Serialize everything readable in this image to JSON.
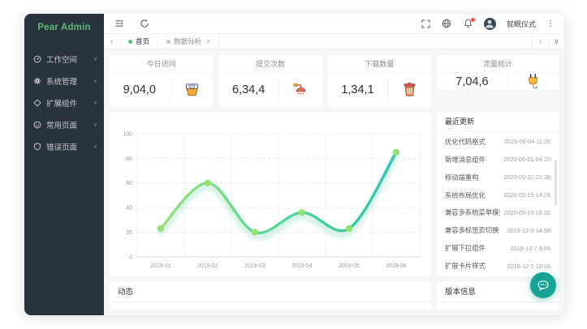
{
  "sidebar": {
    "logo": "Pear Admin",
    "items": [
      {
        "label": "工作空间",
        "icon": "console-icon"
      },
      {
        "label": "系统管理",
        "icon": "settings-icon"
      },
      {
        "label": "扩展组件",
        "icon": "component-icon"
      },
      {
        "label": "常用页面",
        "icon": "pages-icon"
      },
      {
        "label": "错误页面",
        "icon": "error-shield-icon"
      }
    ]
  },
  "header": {
    "username": "就眠仪式"
  },
  "tabbar": {
    "tabs": [
      {
        "label": "首页",
        "active": true
      },
      {
        "label": "数据分析",
        "active": false,
        "closable": true
      }
    ]
  },
  "glyphs": {
    "close": "×",
    "more": "⋮",
    "chevron_left": "‹",
    "chevron_right": "›",
    "chevron_down": "∨"
  },
  "stats": {
    "cards": [
      {
        "title": "今日访问",
        "value": "9,04,0",
        "icon": "paint-bucket-icon"
      },
      {
        "title": "提交次数",
        "value": "6,34,4",
        "icon": "shower-icon"
      },
      {
        "title": "下载数量",
        "value": "1,34,1",
        "icon": "trash-icon"
      },
      {
        "title": "流量统计",
        "value": "7,04,6",
        "icon": "plug-icon"
      }
    ]
  },
  "chart_data": {
    "type": "line",
    "title": "",
    "xlabel": "",
    "ylabel": "",
    "x": [
      "2019-01",
      "2019-02",
      "2019-03",
      "2019-04",
      "2019-05",
      "2019-06"
    ],
    "values": [
      23,
      60,
      20,
      36,
      23,
      85
    ],
    "ylim": [
      0,
      100
    ],
    "yticks": [
      0,
      20,
      40,
      60,
      80,
      100
    ],
    "grid": "horizontal-dashed",
    "legend": "none",
    "smooth": true,
    "line_gradient": [
      "#9de07d",
      "#52d694",
      "#2fc5b2"
    ],
    "point_color": "#97e075",
    "glow_color": "#a8e6cf"
  },
  "updates": {
    "title": "最近更新",
    "items": [
      {
        "name": "优化代码格式",
        "time": "2020-06-04 11:26"
      },
      {
        "name": "新增消息组件",
        "time": "2020-06-01 04:23"
      },
      {
        "name": "移动端重构",
        "time": "2020-05-22 21:38"
      },
      {
        "name": "系统布局优化",
        "time": "2020-05-15 14:26"
      },
      {
        "name": "兼容多系统菜单模式",
        "time": "2020-05-13 16:32"
      },
      {
        "name": "兼容多标签页切换",
        "time": "2019-12-9 14:58"
      },
      {
        "name": "扩展下拉组件",
        "time": "2019-12-7 9:06"
      },
      {
        "name": "扩展卡片样式",
        "time": "2019-12-1 10:26"
      }
    ]
  },
  "bottom": {
    "left_title": "动态",
    "right_title": "版本信息"
  },
  "colors": {
    "accent_green": "#5FB878",
    "sidebar_bg": "#28333e",
    "badge_red": "#ff4d4f",
    "fab_teal": "#17a296"
  }
}
